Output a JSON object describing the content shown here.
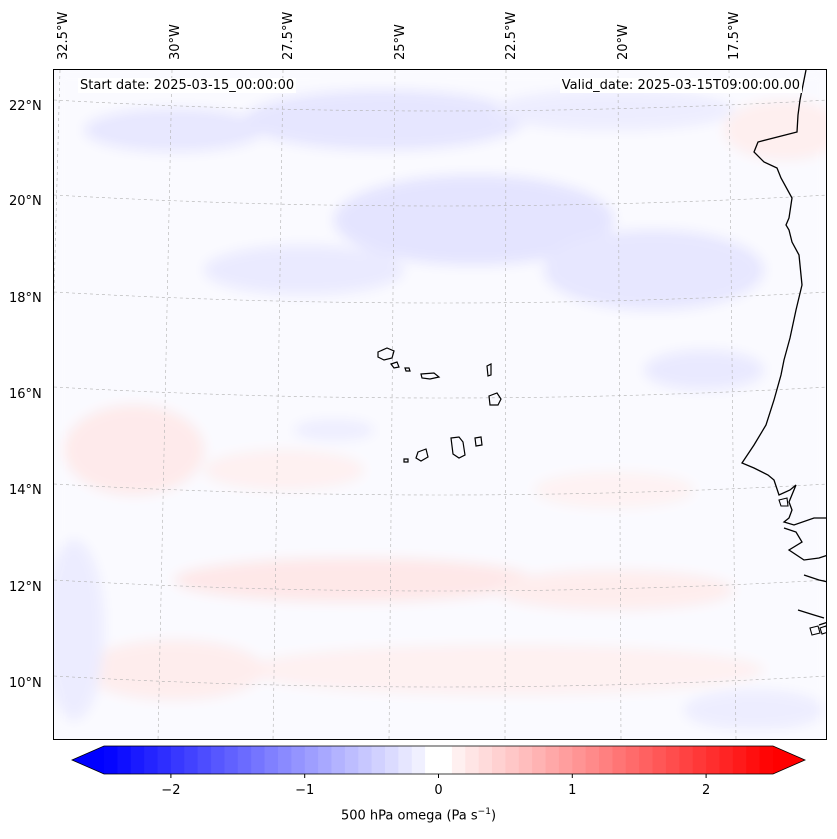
{
  "map": {
    "lon_labels": [
      "32.5°W",
      "30°W",
      "27.5°W",
      "25°W",
      "22.5°W",
      "20°W",
      "17.5°W"
    ],
    "lat_labels": [
      "22°N",
      "20°N",
      "18°N",
      "16°N",
      "14°N",
      "12°N",
      "10°N"
    ],
    "start_date": "Start date: 2025-03-15_00:00:00",
    "valid_date": "Valid_date: 2025-03-15T09:00:00.00",
    "field": "500 hPa omega",
    "colors": {
      "coast": "#000000",
      "grid": "#b0b0b0",
      "neg": "#0000ff",
      "pos": "#ff0000",
      "mid": "#ffffff"
    }
  },
  "colorbar": {
    "label_prefix": "500 hPa omega (Pa s",
    "label_exp": "−1",
    "label_suffix": ")",
    "ticks": [
      "−2",
      "−1",
      "0",
      "1",
      "2"
    ],
    "range": [
      -2.5,
      2.5
    ]
  }
}
